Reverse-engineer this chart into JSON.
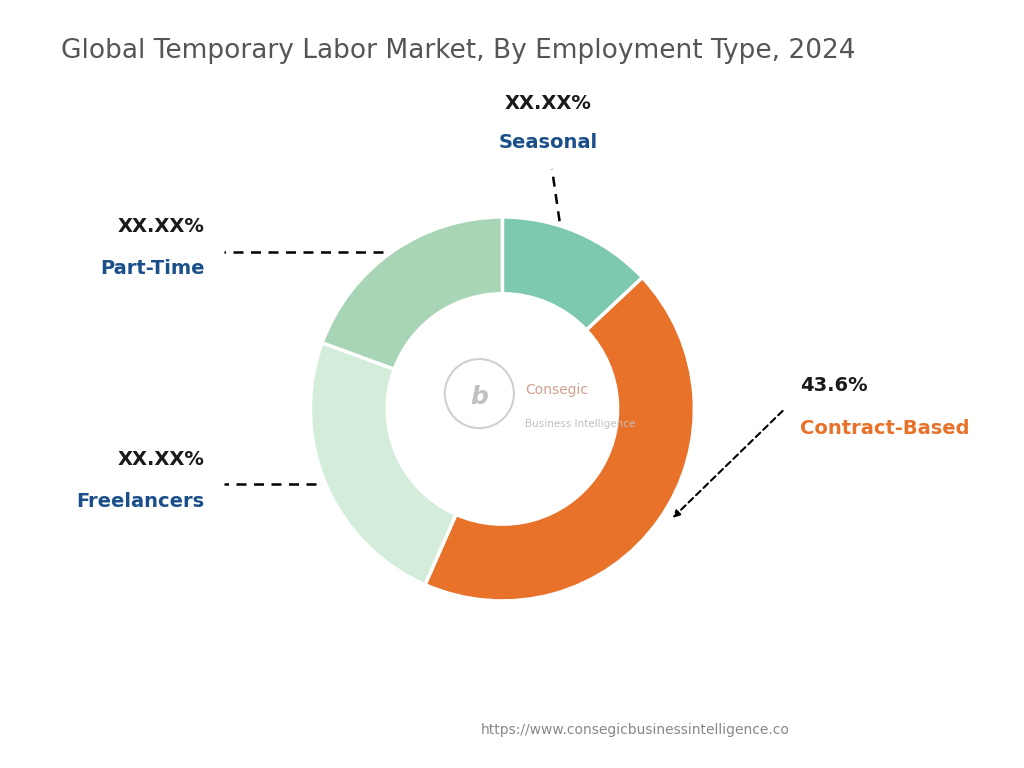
{
  "title": "Global Temporary Labor Market, By Employment Type, 2024",
  "title_color": "#555555",
  "title_fontsize": 19,
  "segments": [
    {
      "label": "Seasonal",
      "value": 13.0,
      "color": "#7DC8B0",
      "display_pct": "XX.XX%"
    },
    {
      "label": "Contract-Based",
      "value": 43.6,
      "color": "#E8722A",
      "display_pct": "43.6%"
    },
    {
      "label": "Freelancers",
      "value": 24.0,
      "color": "#D4EDDA",
      "display_pct": "XX.XX%"
    },
    {
      "label": "Part-Time",
      "value": 19.4,
      "color": "#A8D5B5",
      "display_pct": "XX.XX%"
    }
  ],
  "start_angle": 90,
  "donut_width": 0.4,
  "watermark": "https://www.consegicbusinessintelligence.co",
  "watermark_color": "#888888",
  "label_pct_color": "#1a1a1a",
  "label_name_colors": {
    "Contract-Based": "#E8722A",
    "Seasonal": "#1B4F8A",
    "Part-Time": "#1B4F8A",
    "Freelancers": "#1B4F8A"
  },
  "background_color": "#FFFFFF"
}
